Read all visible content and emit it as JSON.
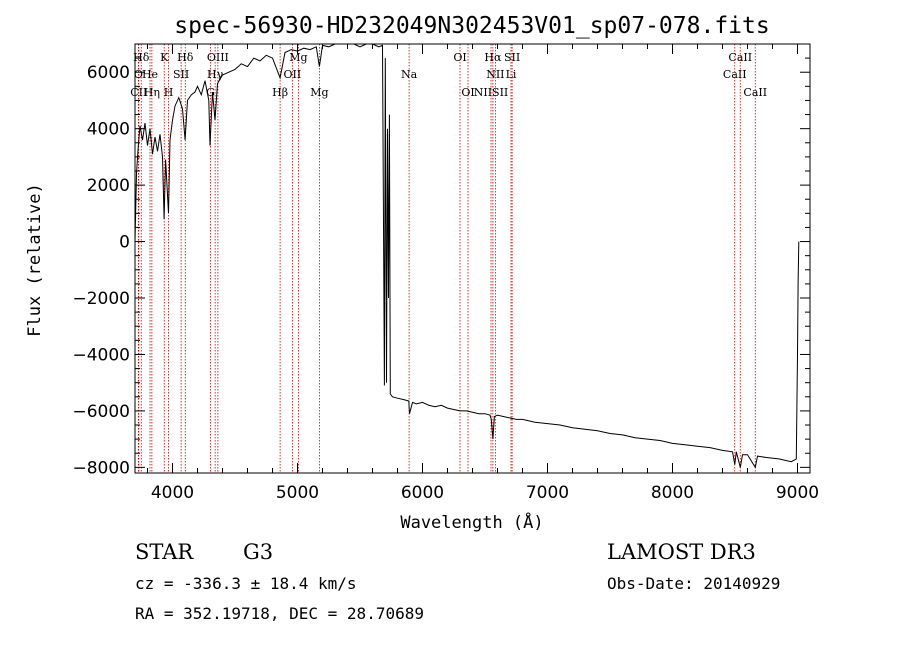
{
  "chart_data": {
    "type": "line",
    "title": "spec-56930-HD232049N302453V01_sp07-078.fits",
    "xlabel": "Wavelength (Å)",
    "ylabel": "Flux (relative)",
    "xlim": [
      3700,
      9100
    ],
    "ylim": [
      -8200,
      7000
    ],
    "x_ticks": [
      4000,
      5000,
      6000,
      7000,
      8000,
      9000
    ],
    "y_ticks": [
      -8000,
      -6000,
      -4000,
      -2000,
      0,
      2000,
      4000,
      6000
    ],
    "series": [
      {
        "name": "spectrum",
        "points": [
          [
            3700,
            0
          ],
          [
            3712,
            2400
          ],
          [
            3725,
            3300
          ],
          [
            3740,
            4100
          ],
          [
            3760,
            3600
          ],
          [
            3780,
            4200
          ],
          [
            3800,
            3400
          ],
          [
            3820,
            4000
          ],
          [
            3840,
            3100
          ],
          [
            3860,
            3700
          ],
          [
            3880,
            3200
          ],
          [
            3900,
            3800
          ],
          [
            3920,
            3000
          ],
          [
            3933,
            800
          ],
          [
            3945,
            2900
          ],
          [
            3968,
            1000
          ],
          [
            3980,
            3600
          ],
          [
            4000,
            4300
          ],
          [
            4020,
            4800
          ],
          [
            4050,
            5100
          ],
          [
            4080,
            4700
          ],
          [
            4101,
            3600
          ],
          [
            4120,
            5000
          ],
          [
            4150,
            5200
          ],
          [
            4180,
            5300
          ],
          [
            4200,
            5500
          ],
          [
            4230,
            5200
          ],
          [
            4260,
            5700
          ],
          [
            4290,
            5000
          ],
          [
            4300,
            3400
          ],
          [
            4320,
            5300
          ],
          [
            4340,
            4300
          ],
          [
            4360,
            5600
          ],
          [
            4400,
            5900
          ],
          [
            4450,
            6000
          ],
          [
            4500,
            6100
          ],
          [
            4550,
            6300
          ],
          [
            4600,
            6200
          ],
          [
            4650,
            6500
          ],
          [
            4700,
            6400
          ],
          [
            4750,
            6600
          ],
          [
            4800,
            6500
          ],
          [
            4861,
            5800
          ],
          [
            4900,
            6700
          ],
          [
            4950,
            6800
          ],
          [
            5000,
            6750
          ],
          [
            5050,
            6850
          ],
          [
            5100,
            6800
          ],
          [
            5150,
            6900
          ],
          [
            5175,
            6200
          ],
          [
            5200,
            6950
          ],
          [
            5250,
            6900
          ],
          [
            5300,
            7000
          ],
          [
            5350,
            7000
          ],
          [
            5400,
            7000
          ],
          [
            5450,
            7000
          ],
          [
            5500,
            6900
          ],
          [
            5550,
            7000
          ],
          [
            5600,
            7000
          ],
          [
            5650,
            6900
          ],
          [
            5680,
            6950
          ],
          [
            5695,
            -5100
          ],
          [
            5702,
            6500
          ],
          [
            5712,
            -5000
          ],
          [
            5720,
            4000
          ],
          [
            5728,
            -2000
          ],
          [
            5735,
            4500
          ],
          [
            5742,
            -5400
          ],
          [
            5760,
            -5500
          ],
          [
            5800,
            -5550
          ],
          [
            5850,
            -5600
          ],
          [
            5890,
            -5650
          ],
          [
            5896,
            -6100
          ],
          [
            5920,
            -5700
          ],
          [
            5950,
            -5750
          ],
          [
            6000,
            -5700
          ],
          [
            6050,
            -5800
          ],
          [
            6100,
            -5850
          ],
          [
            6150,
            -5800
          ],
          [
            6200,
            -5900
          ],
          [
            6250,
            -5950
          ],
          [
            6300,
            -6000
          ],
          [
            6350,
            -6000
          ],
          [
            6400,
            -6050
          ],
          [
            6450,
            -6100
          ],
          [
            6500,
            -6100
          ],
          [
            6540,
            -6150
          ],
          [
            6550,
            -6300
          ],
          [
            6563,
            -7000
          ],
          [
            6575,
            -6200
          ],
          [
            6600,
            -6150
          ],
          [
            6650,
            -6200
          ],
          [
            6700,
            -6250
          ],
          [
            6750,
            -6300
          ],
          [
            6800,
            -6300
          ],
          [
            6900,
            -6400
          ],
          [
            7000,
            -6450
          ],
          [
            7100,
            -6500
          ],
          [
            7200,
            -6600
          ],
          [
            7300,
            -6650
          ],
          [
            7400,
            -6700
          ],
          [
            7500,
            -6800
          ],
          [
            7600,
            -6850
          ],
          [
            7700,
            -6950
          ],
          [
            7800,
            -7000
          ],
          [
            7900,
            -7050
          ],
          [
            8000,
            -7150
          ],
          [
            8100,
            -7200
          ],
          [
            8200,
            -7250
          ],
          [
            8300,
            -7300
          ],
          [
            8400,
            -7400
          ],
          [
            8480,
            -7450
          ],
          [
            8498,
            -7900
          ],
          [
            8510,
            -7450
          ],
          [
            8542,
            -8000
          ],
          [
            8560,
            -7550
          ],
          [
            8600,
            -7550
          ],
          [
            8662,
            -8000
          ],
          [
            8680,
            -7600
          ],
          [
            8750,
            -7650
          ],
          [
            8850,
            -7700
          ],
          [
            8950,
            -7800
          ],
          [
            8990,
            -7700
          ],
          [
            9000,
            -4000
          ],
          [
            9005,
            -1500
          ],
          [
            9010,
            0
          ]
        ]
      }
    ],
    "line_markers": [
      {
        "label": "Hδ",
        "wavelength": 3750,
        "row": 0
      },
      {
        "label": "K",
        "wavelength": 3934,
        "row": 0
      },
      {
        "label": "Hδ",
        "wavelength": 4102,
        "row": 0
      },
      {
        "label": "OIII",
        "wavelength": 4363,
        "row": 0
      },
      {
        "label": "Mg",
        "wavelength": 5007,
        "row": 0
      },
      {
        "label": "OI",
        "wavelength": 6300,
        "row": 0
      },
      {
        "label": "Hα",
        "wavelength": 6563,
        "row": 0
      },
      {
        "label": "SII",
        "wavelength": 6717,
        "row": 0
      },
      {
        "label": "CaII",
        "wavelength": 8542,
        "row": 0
      },
      {
        "label": "O",
        "wavelength": 3727,
        "row": 1
      },
      {
        "label": "He",
        "wavelength": 3820,
        "row": 1
      },
      {
        "label": "SII",
        "wavelength": 4069,
        "row": 1
      },
      {
        "label": "Hγ",
        "wavelength": 4341,
        "row": 1
      },
      {
        "label": "OII",
        "wavelength": 4959,
        "row": 1
      },
      {
        "label": "Na",
        "wavelength": 5893,
        "row": 1
      },
      {
        "label": "NII",
        "wavelength": 6583,
        "row": 1
      },
      {
        "label": "Li",
        "wavelength": 6708,
        "row": 1
      },
      {
        "label": "CaII",
        "wavelength": 8498,
        "row": 1
      },
      {
        "label": "CII",
        "wavelength": 3730,
        "row": 2
      },
      {
        "label": "Hη",
        "wavelength": 3835,
        "row": 2
      },
      {
        "label": "H",
        "wavelength": 3968,
        "row": 2
      },
      {
        "label": "G",
        "wavelength": 4304,
        "row": 2
      },
      {
        "label": "Hβ",
        "wavelength": 4861,
        "row": 2
      },
      {
        "label": "Mg",
        "wavelength": 5175,
        "row": 2
      },
      {
        "label": "OI",
        "wavelength": 6364,
        "row": 2
      },
      {
        "label": "NIISII",
        "wavelength": 6548,
        "row": 2
      },
      {
        "label": "CaII",
        "wavelength": 8662,
        "row": 2
      }
    ],
    "marker_color": "#cc0000",
    "line_color": "#000000"
  },
  "info": {
    "object_class": "STAR",
    "subclass": "G3",
    "survey": "LAMOST DR3",
    "cz": "cz = -336.3 ± 18.4 km/s",
    "obs_date": "Obs-Date: 20140929",
    "coords": "RA = 352.19718, DEC =  28.70689"
  }
}
